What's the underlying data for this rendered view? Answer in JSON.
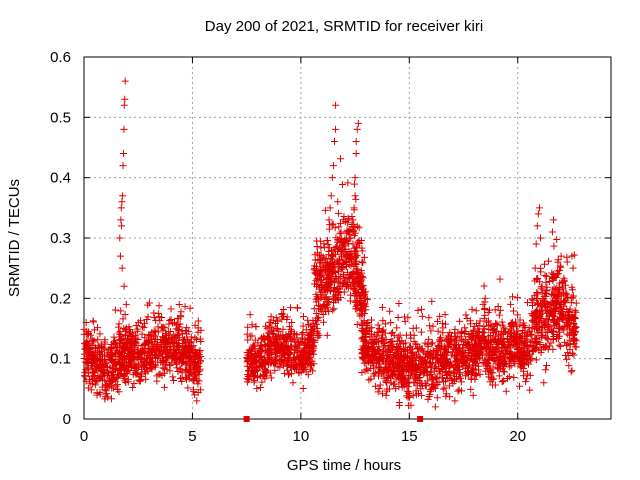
{
  "chart_data": {
    "type": "scatter",
    "title": "Day 200 of 2021, SRMTID for receiver kiri",
    "xlabel": "GPS time / hours",
    "ylabel": "SRMTID / TECUs",
    "xlim": [
      0,
      24.3
    ],
    "ylim": [
      0,
      0.6
    ],
    "xticks": [
      0,
      5,
      10,
      15,
      20
    ],
    "xtick_labels": [
      "0",
      "5",
      "10",
      "15",
      "20"
    ],
    "yticks": [
      0,
      0.1,
      0.2,
      0.3,
      0.4,
      0.5,
      0.6
    ],
    "ytick_labels": [
      "0",
      "0.1",
      "0.2",
      "0.3",
      "0.4",
      "0.5",
      "0.6"
    ],
    "grid": true,
    "marker": "plus",
    "marker_color": "#e00000",
    "series": [
      {
        "name": "SRMTID",
        "segments": [
          {
            "x_start": 0.0,
            "x_end": 5.4,
            "base": [
              0.11,
              0.09,
              0.08,
              0.1,
              0.11,
              0.1,
              0.12,
              0.11,
              0.12,
              0.1,
              0.09
            ],
            "spread": 0.035,
            "density": 170
          },
          {
            "x_start": 7.5,
            "x_end": 10.6,
            "base": [
              0.1,
              0.09,
              0.11,
              0.12,
              0.11,
              0.1,
              0.12
            ],
            "spread": 0.03,
            "density": 170
          },
          {
            "x_start": 10.6,
            "x_end": 13.0,
            "base": [
              0.2,
              0.23,
              0.25,
              0.27,
              0.25,
              0.2
            ],
            "spread": 0.05,
            "density": 200
          },
          {
            "x_start": 12.8,
            "x_end": 20.6,
            "base": [
              0.13,
              0.1,
              0.09,
              0.08,
              0.09,
              0.1,
              0.1,
              0.12,
              0.11,
              0.12,
              0.11
            ],
            "spread": 0.035,
            "density": 170
          },
          {
            "x_start": 20.6,
            "x_end": 22.7,
            "base": [
              0.14,
              0.17,
              0.17,
              0.19,
              0.17,
              0.15
            ],
            "spread": 0.045,
            "density": 190
          }
        ],
        "spikes": [
          {
            "x": 1.65,
            "y": 0.3
          },
          {
            "x": 1.7,
            "y": 0.33
          },
          {
            "x": 1.72,
            "y": 0.35
          },
          {
            "x": 1.75,
            "y": 0.36
          },
          {
            "x": 1.78,
            "y": 0.37
          },
          {
            "x": 1.8,
            "y": 0.42
          },
          {
            "x": 1.82,
            "y": 0.44
          },
          {
            "x": 1.84,
            "y": 0.48
          },
          {
            "x": 1.86,
            "y": 0.52
          },
          {
            "x": 1.88,
            "y": 0.53
          },
          {
            "x": 1.9,
            "y": 0.56
          },
          {
            "x": 1.76,
            "y": 0.25
          },
          {
            "x": 1.85,
            "y": 0.22
          },
          {
            "x": 1.95,
            "y": 0.19
          },
          {
            "x": 1.68,
            "y": 0.27
          },
          {
            "x": 1.73,
            "y": 0.32
          },
          {
            "x": 11.3,
            "y": 0.33
          },
          {
            "x": 11.35,
            "y": 0.35
          },
          {
            "x": 11.4,
            "y": 0.37
          },
          {
            "x": 11.45,
            "y": 0.4
          },
          {
            "x": 11.5,
            "y": 0.42
          },
          {
            "x": 11.55,
            "y": 0.46
          },
          {
            "x": 11.6,
            "y": 0.48
          },
          {
            "x": 11.6,
            "y": 0.52
          },
          {
            "x": 11.7,
            "y": 0.36
          },
          {
            "x": 11.85,
            "y": 0.31
          },
          {
            "x": 11.95,
            "y": 0.29
          },
          {
            "x": 12.3,
            "y": 0.3
          },
          {
            "x": 12.4,
            "y": 0.33
          },
          {
            "x": 12.45,
            "y": 0.35
          },
          {
            "x": 12.5,
            "y": 0.37
          },
          {
            "x": 12.5,
            "y": 0.4
          },
          {
            "x": 12.55,
            "y": 0.44
          },
          {
            "x": 12.55,
            "y": 0.46
          },
          {
            "x": 12.6,
            "y": 0.48
          },
          {
            "x": 12.65,
            "y": 0.49
          },
          {
            "x": 12.4,
            "y": 0.29
          },
          {
            "x": 12.2,
            "y": 0.31
          },
          {
            "x": 20.85,
            "y": 0.29
          },
          {
            "x": 20.9,
            "y": 0.32
          },
          {
            "x": 20.95,
            "y": 0.34
          },
          {
            "x": 21.0,
            "y": 0.35
          },
          {
            "x": 21.05,
            "y": 0.3
          },
          {
            "x": 21.6,
            "y": 0.31
          },
          {
            "x": 21.65,
            "y": 0.33
          },
          {
            "x": 21.85,
            "y": 0.26
          },
          {
            "x": 22.0,
            "y": 0.27
          },
          {
            "x": 22.15,
            "y": 0.23
          },
          {
            "x": 22.5,
            "y": 0.27
          },
          {
            "x": 22.55,
            "y": 0.25
          },
          {
            "x": 21.2,
            "y": 0.06
          },
          {
            "x": 15.4,
            "y": 0.18
          },
          {
            "x": 15.6,
            "y": 0.17
          },
          {
            "x": 16.4,
            "y": 0.17
          },
          {
            "x": 18.4,
            "y": 0.19
          },
          {
            "x": 18.5,
            "y": 0.2
          },
          {
            "x": 19.2,
            "y": 0.18
          },
          {
            "x": 9.2,
            "y": 0.17
          },
          {
            "x": 8.6,
            "y": 0.16
          },
          {
            "x": 5.2,
            "y": 0.03
          },
          {
            "x": 5.1,
            "y": 0.04
          },
          {
            "x": 16.2,
            "y": 0.02
          },
          {
            "x": 17.1,
            "y": 0.03
          },
          {
            "x": 0.05,
            "y": 0.07
          },
          {
            "x": 0.1,
            "y": 0.16
          }
        ],
        "zero_points": [
          {
            "x": 7.5,
            "y": 0.0
          },
          {
            "x": 15.5,
            "y": 0.0
          }
        ]
      }
    ]
  }
}
